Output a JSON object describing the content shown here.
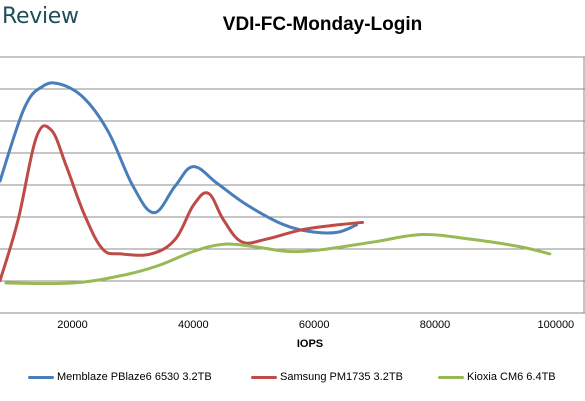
{
  "brand": "Review",
  "chart_data": {
    "type": "line",
    "title": "VDI-FC-Monday-Login",
    "xlabel": "IOPS",
    "ylabel": "",
    "xlim": [
      8000,
      104000
    ],
    "x_ticks": [
      "20000",
      "40000",
      "60000",
      "80000",
      "100000"
    ],
    "grid": "horizontal",
    "legend_position": "bottom",
    "series": [
      {
        "name": "Memblaze PBlaze6 6530 3.2TB",
        "color": "#4a7ebb",
        "points": [
          [
            8000,
            2.1
          ],
          [
            12000,
            3.6
          ],
          [
            15000,
            4.05
          ],
          [
            18000,
            4.1
          ],
          [
            22000,
            3.8
          ],
          [
            26000,
            3.1
          ],
          [
            30000,
            2.0
          ],
          [
            33500,
            1.45
          ],
          [
            37000,
            2.0
          ],
          [
            40000,
            2.4
          ],
          [
            44000,
            2.05
          ],
          [
            49000,
            1.6
          ],
          [
            55000,
            1.2
          ],
          [
            60000,
            1.05
          ],
          [
            64000,
            1.05
          ],
          [
            67000,
            1.2
          ]
        ]
      },
      {
        "name": "Samsung PM1735 3.2TB",
        "color": "#be4b48",
        "points": [
          [
            8000,
            0.05
          ],
          [
            11000,
            1.3
          ],
          [
            14000,
            3.0
          ],
          [
            16500,
            3.15
          ],
          [
            19000,
            2.4
          ],
          [
            22000,
            1.4
          ],
          [
            25000,
            0.7
          ],
          [
            28000,
            0.6
          ],
          [
            33000,
            0.6
          ],
          [
            37000,
            0.9
          ],
          [
            40000,
            1.6
          ],
          [
            42500,
            1.85
          ],
          [
            45000,
            1.3
          ],
          [
            48000,
            0.85
          ],
          [
            52000,
            0.9
          ],
          [
            58000,
            1.1
          ],
          [
            64000,
            1.2
          ],
          [
            68000,
            1.25
          ]
        ]
      },
      {
        "name": "Kioxia CM6 6.4TB",
        "color": "#98b954",
        "points": [
          [
            9000,
            0.0
          ],
          [
            20000,
            0.0
          ],
          [
            28000,
            0.15
          ],
          [
            34000,
            0.35
          ],
          [
            40000,
            0.65
          ],
          [
            45000,
            0.8
          ],
          [
            50000,
            0.75
          ],
          [
            56000,
            0.65
          ],
          [
            62000,
            0.7
          ],
          [
            70000,
            0.85
          ],
          [
            78000,
            1.0
          ],
          [
            86000,
            0.9
          ],
          [
            94000,
            0.75
          ],
          [
            99000,
            0.6
          ]
        ]
      }
    ]
  }
}
